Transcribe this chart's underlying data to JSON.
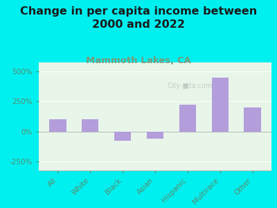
{
  "title": "Change in per capita income between\n2000 and 2022",
  "subtitle": "Mammoth Lakes, CA",
  "categories": [
    "All",
    "White",
    "Black",
    "Asian",
    "Hispanic",
    "Multirace",
    "Other"
  ],
  "values": [
    100,
    100,
    -75,
    -60,
    225,
    450,
    200
  ],
  "bar_color": "#b39ddb",
  "background_outer": "#00f0f0",
  "background_plot": "#e8f5e9",
  "title_color": "#1a1a1a",
  "subtitle_color": "#7a9a7a",
  "axis_label_color": "#5a8a6a",
  "ylim": [
    -325,
    575
  ],
  "yticks": [
    -250,
    0,
    250,
    500
  ],
  "ytick_labels": [
    "-250%",
    "0%",
    "250%",
    "500%"
  ],
  "title_fontsize": 11.5,
  "subtitle_fontsize": 9.5,
  "tick_fontsize": 7.5,
  "watermark": "City-■ta.com"
}
